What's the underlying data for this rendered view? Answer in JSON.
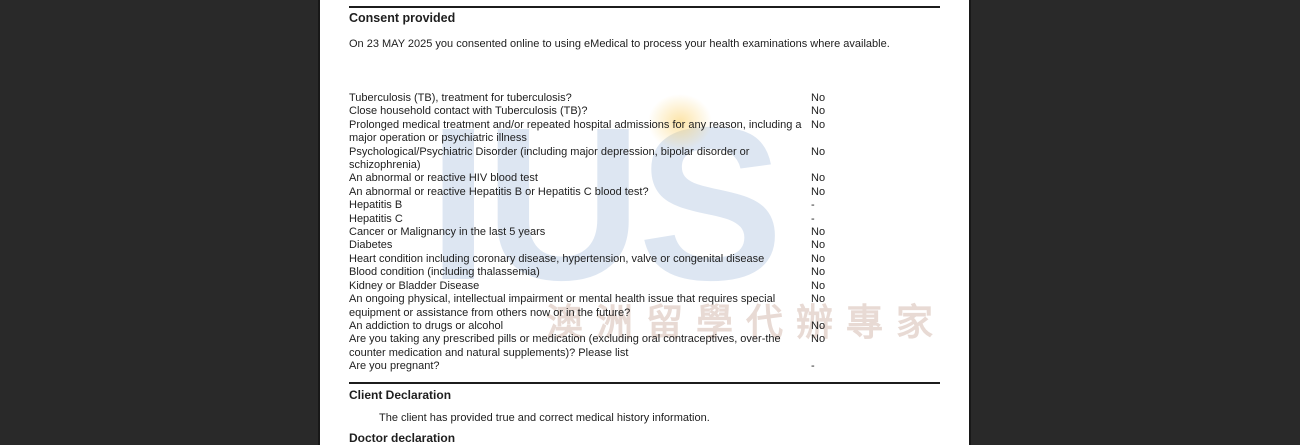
{
  "consent_section": {
    "title": "Consent provided",
    "body": "On 23 MAY 2025 you consented online to using eMedical to process your health examinations where available."
  },
  "questions": [
    {
      "q": "Tuberculosis (TB), treatment for tuberculosis?",
      "a": "No"
    },
    {
      "q": "Close household contact with Tuberculosis (TB)?",
      "a": "No"
    },
    {
      "q": "Prolonged medical treatment and/or repeated hospital admissions for any reason, including a major operation or psychiatric illness",
      "a": "No"
    },
    {
      "q": "Psychological/Psychiatric Disorder (including major depression, bipolar disorder or schizophrenia)",
      "a": "No"
    },
    {
      "q": "An abnormal or reactive HIV blood test",
      "a": "No"
    },
    {
      "q": "An abnormal or reactive Hepatitis B or Hepatitis C blood test?",
      "a": "No"
    },
    {
      "q": "Hepatitis B",
      "a": "-"
    },
    {
      "q": "Hepatitis C",
      "a": "-"
    },
    {
      "q": "Cancer or Malignancy in the last 5 years",
      "a": "No"
    },
    {
      "q": "Diabetes",
      "a": "No"
    },
    {
      "q": "Heart condition including coronary disease, hypertension, valve or congenital disease",
      "a": "No"
    },
    {
      "q": "Blood condition (including thalassemia)",
      "a": "No"
    },
    {
      "q": "Kidney or Bladder Disease",
      "a": "No"
    },
    {
      "q": "An ongoing physical, intellectual impairment or mental health issue that requires special equipment or assistance from others now or in the future?",
      "a": "No"
    },
    {
      "q": "An addiction to drugs or alcohol",
      "a": "No"
    },
    {
      "q": "Are you taking any prescribed pills or medication (excluding oral contraceptives, over-the counter medication and natural supplements)? Please list",
      "a": "No"
    },
    {
      "q": "Are you pregnant?",
      "a": "-"
    }
  ],
  "client_declaration": {
    "title": "Client Declaration",
    "body": "The client has provided true and correct medical history information."
  },
  "doctor_declaration": {
    "title": "Doctor declaration"
  },
  "watermark": {
    "logo_text": "IUS",
    "cjk_text": "澳洲留學代辦專家",
    "logo_color": "#c1d2e7",
    "dot_color": "#face60",
    "cjk_color": "#d6bbb1"
  }
}
